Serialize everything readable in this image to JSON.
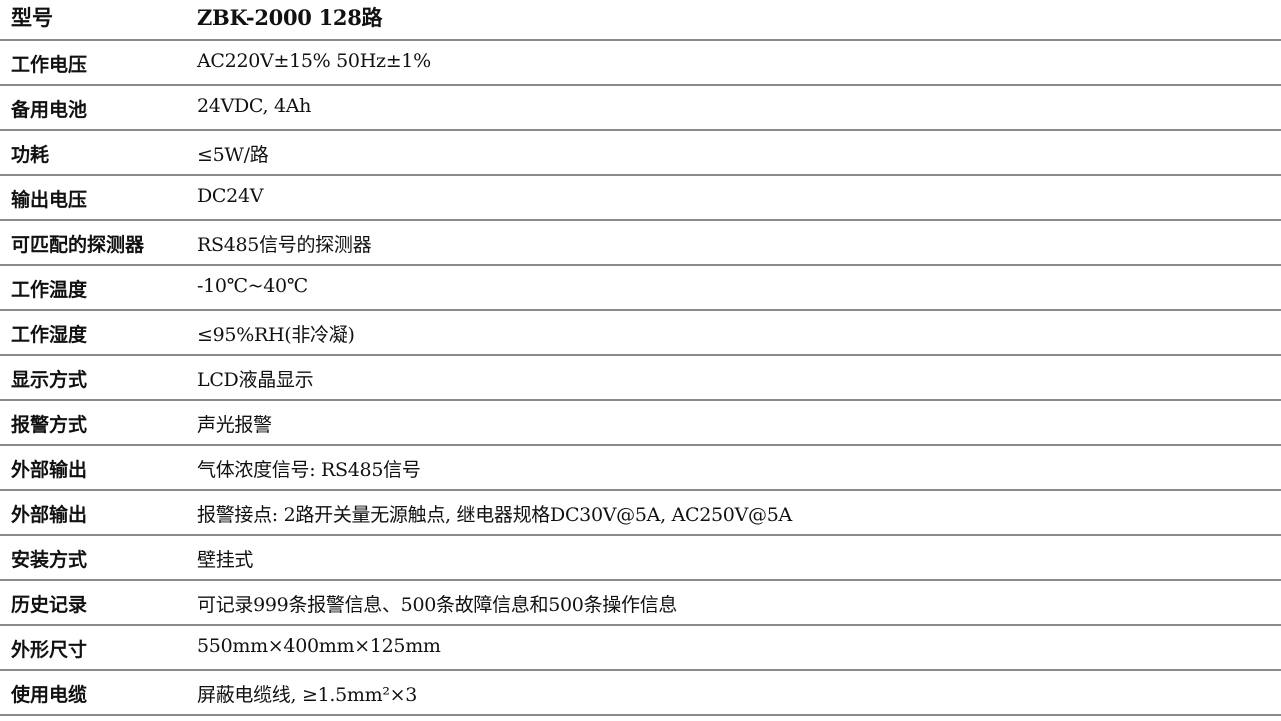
{
  "header": {
    "label": "型号",
    "value": "ZBK-2000 128路"
  },
  "rows": [
    {
      "label": "工作电压",
      "value": "AC220V±15% 50Hz±1%"
    },
    {
      "label": "备用电池",
      "value": "24VDC, 4Ah"
    },
    {
      "label": "功耗",
      "value": "≤5W/路"
    },
    {
      "label": "输出电压",
      "value": "DC24V"
    },
    {
      "label": "可匹配的探测器",
      "value": "RS485信号的探测器"
    },
    {
      "label": "工作温度",
      "value": "-10℃~40℃"
    },
    {
      "label": "工作湿度",
      "value": "≤95%RH(非冷凝)"
    },
    {
      "label": "显示方式",
      "value": "LCD液晶显示"
    },
    {
      "label": "报警方式",
      "value": "声光报警"
    },
    {
      "label": "外部输出",
      "value": "气体浓度信号: RS485信号"
    },
    {
      "label": "外部输出",
      "value": "报警接点: 2路开关量无源触点, 继电器规格DC30V@5A, AC250V@5A"
    },
    {
      "label": "安装方式",
      "value": "壁挂式"
    },
    {
      "label": "历史记录",
      "value": "可记录999条报警信息、500条故障信息和500条操作信息"
    },
    {
      "label": "外形尺寸",
      "value": "550mm×400mm×125mm"
    },
    {
      "label": "使用电缆",
      "value": "屏蔽电缆线, ≥1.5mm²×3"
    }
  ]
}
